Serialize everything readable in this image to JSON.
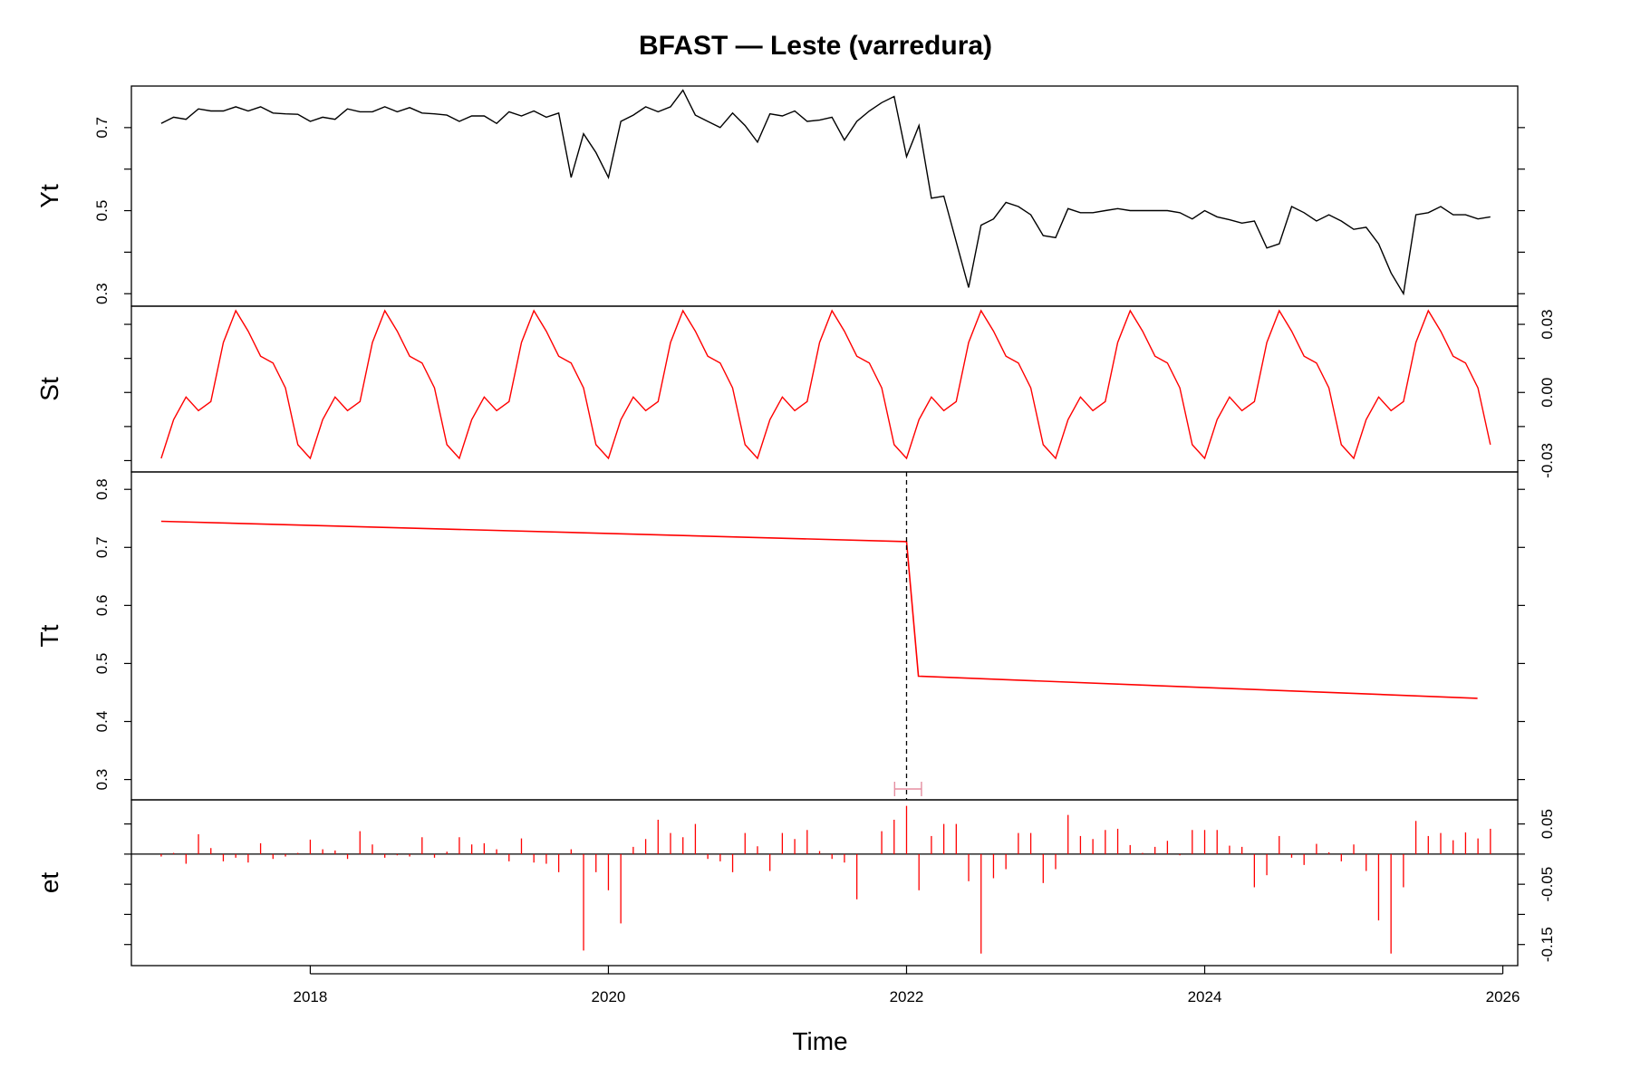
{
  "chart_data": {
    "type": "line",
    "title": "BFAST — Leste (varredura)",
    "xlabel": "Time",
    "x_ticks": [
      2018,
      2020,
      2022,
      2024,
      2026
    ],
    "xlim": [
      2016.8,
      2026.1
    ],
    "breakpoint": 2022.0,
    "breakpoint_ci": [
      2021.92,
      2022.1
    ],
    "panels": [
      {
        "name": "Yt",
        "ylabel": "Yt",
        "ylim": [
          0.27,
          0.8
        ],
        "y_ticks": [
          0.3,
          0.5,
          0.7
        ],
        "tick_side": "left",
        "style": "line",
        "color": "#000000",
        "values": [
          0.71,
          0.725,
          0.72,
          0.745,
          0.74,
          0.74,
          0.75,
          0.74,
          0.75,
          0.735,
          0.733,
          0.732,
          0.715,
          0.725,
          0.72,
          0.745,
          0.738,
          0.738,
          0.75,
          0.738,
          0.748,
          0.735,
          0.733,
          0.73,
          0.715,
          0.728,
          0.728,
          0.71,
          0.738,
          0.728,
          0.74,
          0.725,
          0.735,
          0.58,
          0.685,
          0.64,
          0.58,
          0.715,
          0.73,
          0.75,
          0.738,
          0.75,
          0.79,
          0.73,
          0.715,
          0.7,
          0.735,
          0.705,
          0.665,
          0.733,
          0.728,
          0.74,
          0.715,
          0.718,
          0.725,
          0.67,
          0.715,
          0.74,
          0.76,
          0.775,
          0.63,
          0.705,
          0.53,
          0.535,
          0.425,
          0.315,
          0.465,
          0.48,
          0.52,
          0.51,
          0.49,
          0.44,
          0.435,
          0.505,
          0.495,
          0.495,
          0.5,
          0.505,
          0.5,
          0.5,
          0.5,
          0.5,
          0.495,
          0.48,
          0.5,
          0.485,
          0.478,
          0.47,
          0.475,
          0.41,
          0.42,
          0.51,
          0.495,
          0.475,
          0.49,
          0.475,
          0.455,
          0.46,
          0.42,
          0.35,
          0.3,
          0.49,
          0.495,
          0.51,
          0.49,
          0.49,
          0.48,
          0.485
        ]
      },
      {
        "name": "St",
        "ylabel": "St",
        "ylim": [
          -0.035,
          0.038
        ],
        "y_ticks": [
          -0.03,
          0.0,
          0.03
        ],
        "y_tick_labels": [
          "-0.03",
          "0.00",
          "0.03"
        ],
        "tick_side": "right",
        "style": "line",
        "color": "#ff0000",
        "season": [
          -0.029,
          -0.012,
          -0.002,
          -0.008,
          -0.004,
          0.022,
          0.036,
          0.027,
          0.016,
          0.013,
          0.002,
          -0.023
        ]
      },
      {
        "name": "Tt",
        "ylabel": "Tt",
        "ylim": [
          0.265,
          0.83
        ],
        "y_ticks": [
          0.3,
          0.4,
          0.5,
          0.6,
          0.7,
          0.8
        ],
        "tick_side": "left",
        "style": "line",
        "color": "#ff0000",
        "segments": [
          {
            "x": [
              2017.0,
              2022.0
            ],
            "y": [
              0.745,
              0.71
            ]
          },
          {
            "x": [
              2022.08,
              2025.83
            ],
            "y": [
              0.478,
              0.44
            ]
          }
        ]
      },
      {
        "name": "et",
        "ylabel": "et",
        "ylim": [
          -0.185,
          0.09
        ],
        "y_ticks": [
          -0.15,
          -0.05,
          0.05
        ],
        "y_tick_labels": [
          "-0.15",
          "-0.05",
          "0.05"
        ],
        "tick_side": "right",
        "style": "spikes",
        "color": "#ff0000",
        "values": [
          -0.004,
          0.002,
          -0.016,
          0.033,
          0.01,
          -0.012,
          -0.006,
          -0.014,
          0.018,
          -0.008,
          -0.004,
          0.002,
          0.024,
          0.008,
          0.006,
          -0.008,
          0.038,
          0.016,
          -0.006,
          -0.002,
          -0.004,
          0.028,
          -0.006,
          0.004,
          0.028,
          0.016,
          0.018,
          0.008,
          -0.012,
          0.026,
          -0.014,
          -0.016,
          -0.03,
          0.008,
          -0.16,
          -0.03,
          -0.06,
          -0.115,
          0.012,
          0.025,
          0.057,
          0.035,
          0.028,
          0.05,
          -0.008,
          -0.012,
          -0.03,
          0.035,
          0.013,
          -0.028,
          0.035,
          0.025,
          0.04,
          0.005,
          -0.008,
          -0.014,
          -0.075,
          0.0,
          0.038,
          0.057,
          0.08,
          -0.06,
          0.03,
          0.05,
          0.05,
          -0.045,
          -0.165,
          -0.04,
          -0.025,
          0.035,
          0.035,
          -0.048,
          -0.025,
          0.065,
          0.03,
          0.025,
          0.04,
          0.042,
          0.015,
          0.002,
          0.012,
          0.022,
          -0.002,
          0.04,
          0.04,
          0.04,
          0.014,
          0.012,
          -0.055,
          -0.035,
          0.03,
          -0.006,
          -0.018,
          0.017,
          0.003,
          -0.012,
          0.016,
          -0.028,
          -0.11,
          -0.165,
          -0.055,
          0.055,
          0.03,
          0.035,
          0.023,
          0.036,
          0.026,
          0.042
        ]
      }
    ]
  }
}
